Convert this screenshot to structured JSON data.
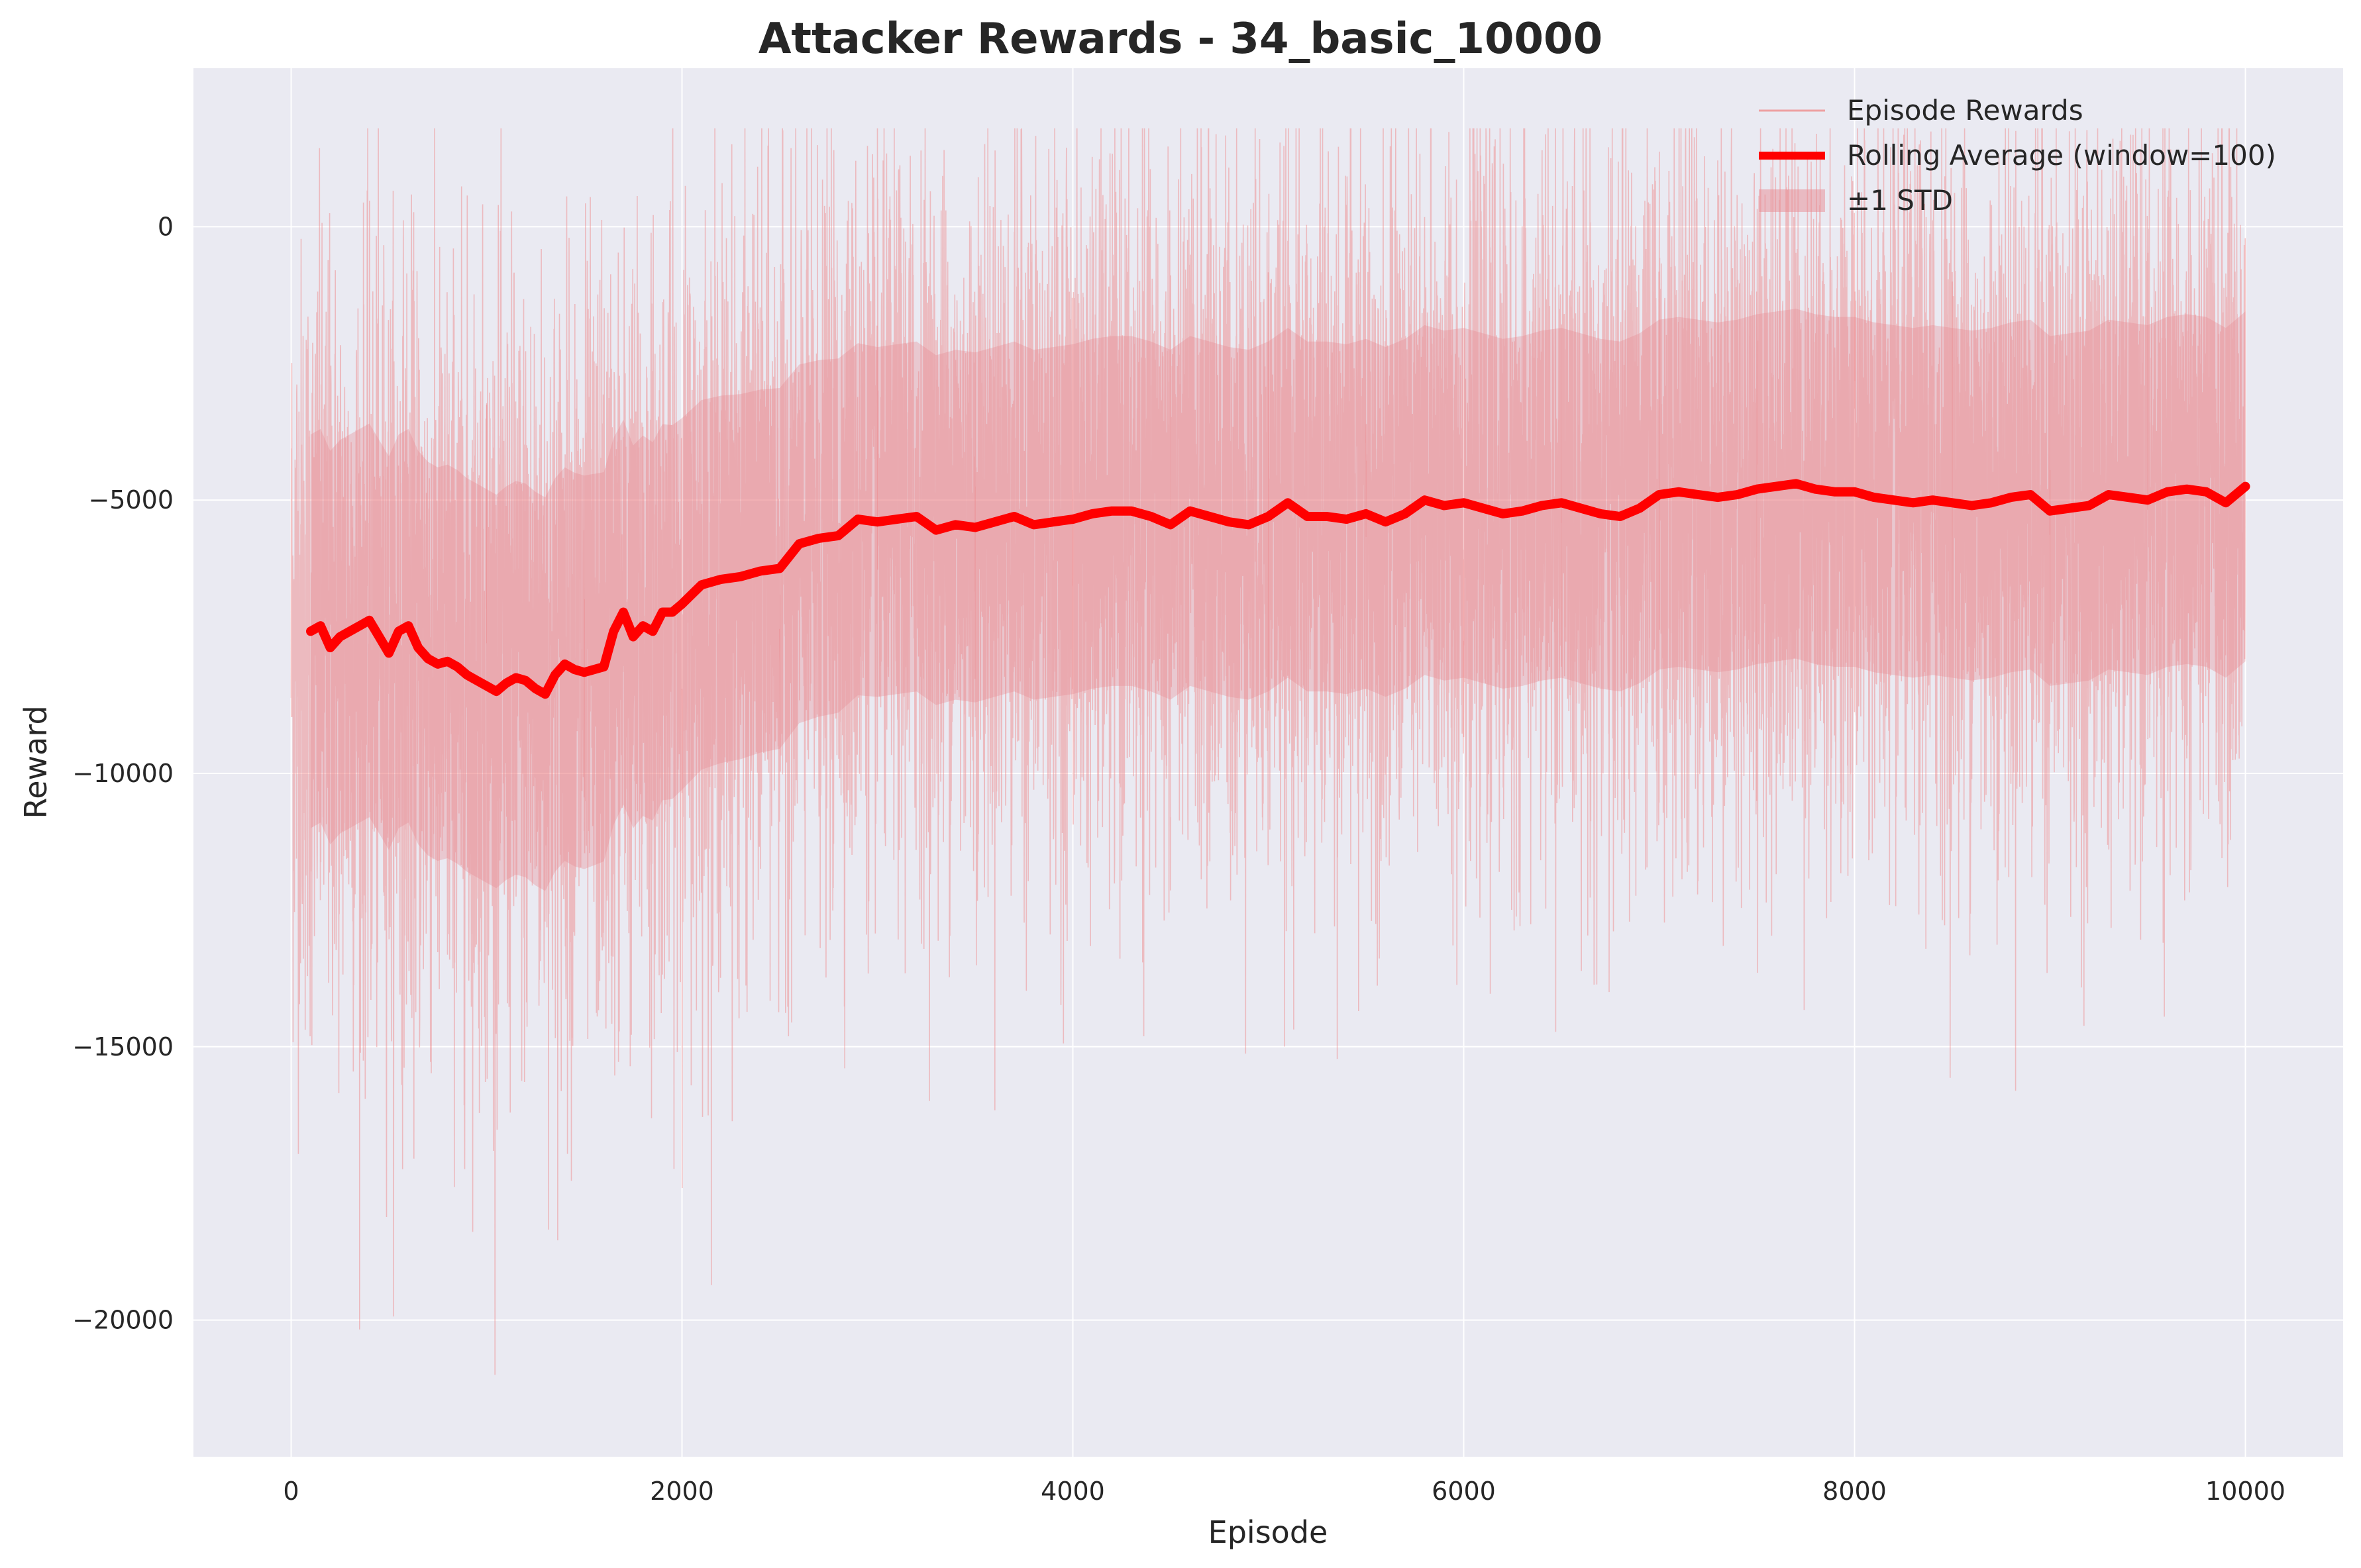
{
  "chart_data": {
    "type": "line",
    "title": "Attacker Rewards - 34_basic_10000",
    "xlabel": "Episode",
    "ylabel": "Reward",
    "xlim": [
      -500,
      10500
    ],
    "ylim": [
      -22500,
      2900
    ],
    "xticks": [
      0,
      2000,
      4000,
      6000,
      8000,
      10000
    ],
    "yticks": [
      0,
      -5000,
      -10000,
      -15000,
      -20000
    ],
    "xtick_labels": [
      "0",
      "2000",
      "4000",
      "6000",
      "8000",
      "10000"
    ],
    "ytick_labels": [
      "0",
      "−5000",
      "−10000",
      "−15000",
      "−20000"
    ],
    "grid": true,
    "legend_position": "top-right",
    "colors": {
      "background": "#eaeaf2",
      "grid": "#ffffff",
      "episode_rewards": "#f08080",
      "rolling_average": "#ff0000",
      "std_band": "#e88a92"
    },
    "series": [
      {
        "name": "Episode Rewards",
        "kind": "raw",
        "episodes": 10000,
        "mean_trend": {
          "x": [
            0,
            500,
            1000,
            1500,
            2000,
            2500,
            3000,
            4000,
            5000,
            6000,
            7000,
            8000,
            9000,
            10000
          ],
          "y": [
            -7500,
            -7700,
            -8200,
            -8000,
            -6900,
            -6200,
            -5400,
            -5300,
            -5300,
            -5100,
            -5000,
            -4900,
            -5000,
            -4900
          ]
        },
        "spread_std": {
          "x": [
            0,
            1500,
            2000,
            3000,
            10000
          ],
          "y": [
            3600,
            3600,
            3400,
            3200,
            3200
          ]
        },
        "range_min": -21000,
        "range_max": 1800
      },
      {
        "name": "Rolling Average (window=100)",
        "kind": "rolling",
        "x": [
          100,
          150,
          200,
          250,
          300,
          350,
          400,
          450,
          500,
          550,
          600,
          650,
          700,
          750,
          800,
          850,
          900,
          950,
          1000,
          1050,
          1100,
          1150,
          1200,
          1250,
          1300,
          1350,
          1400,
          1450,
          1500,
          1550,
          1600,
          1650,
          1700,
          1750,
          1800,
          1850,
          1900,
          1950,
          2000,
          2100,
          2200,
          2300,
          2400,
          2500,
          2600,
          2700,
          2800,
          2900,
          3000,
          3100,
          3200,
          3300,
          3400,
          3500,
          3600,
          3700,
          3800,
          3900,
          4000,
          4100,
          4200,
          4300,
          4400,
          4500,
          4600,
          4700,
          4800,
          4900,
          5000,
          5100,
          5200,
          5300,
          5400,
          5500,
          5600,
          5700,
          5800,
          5900,
          6000,
          6100,
          6200,
          6300,
          6400,
          6500,
          6600,
          6700,
          6800,
          6900,
          7000,
          7100,
          7200,
          7300,
          7400,
          7500,
          7600,
          7700,
          7800,
          7900,
          8000,
          8100,
          8200,
          8300,
          8400,
          8500,
          8600,
          8700,
          8800,
          8900,
          9000,
          9100,
          9200,
          9300,
          9400,
          9500,
          9600,
          9700,
          9800,
          9900,
          10000
        ],
        "y": [
          -7400,
          -7300,
          -7700,
          -7500,
          -7400,
          -7300,
          -7200,
          -7500,
          -7800,
          -7400,
          -7300,
          -7700,
          -7900,
          -8000,
          -7950,
          -8050,
          -8200,
          -8300,
          -8400,
          -8500,
          -8350,
          -8250,
          -8300,
          -8450,
          -8550,
          -8200,
          -8000,
          -8100,
          -8150,
          -8100,
          -8050,
          -7400,
          -7050,
          -7500,
          -7300,
          -7400,
          -7050,
          -7050,
          -6900,
          -6550,
          -6450,
          -6400,
          -6300,
          -6250,
          -5800,
          -5700,
          -5650,
          -5350,
          -5400,
          -5350,
          -5300,
          -5550,
          -5450,
          -5500,
          -5400,
          -5300,
          -5450,
          -5400,
          -5350,
          -5250,
          -5200,
          -5200,
          -5300,
          -5450,
          -5200,
          -5300,
          -5400,
          -5450,
          -5300,
          -5050,
          -5300,
          -5300,
          -5350,
          -5250,
          -5400,
          -5250,
          -5000,
          -5100,
          -5050,
          -5150,
          -5250,
          -5200,
          -5100,
          -5050,
          -5150,
          -5250,
          -5300,
          -5150,
          -4900,
          -4850,
          -4900,
          -4950,
          -4900,
          -4800,
          -4750,
          -4700,
          -4800,
          -4850,
          -4850,
          -4950,
          -5000,
          -5050,
          -5000,
          -5050,
          -5100,
          -5050,
          -4950,
          -4900,
          -5200,
          -5150,
          -5100,
          -4900,
          -4950,
          -5000,
          -4850,
          -4800,
          -4850,
          -5050,
          -4750
        ]
      },
      {
        "name": "±1 STD",
        "kind": "band",
        "std_x": [
          100,
          1500,
          2000,
          3000,
          10000
        ],
        "std_y": [
          3600,
          3600,
          3400,
          3200,
          3200
        ]
      }
    ]
  }
}
